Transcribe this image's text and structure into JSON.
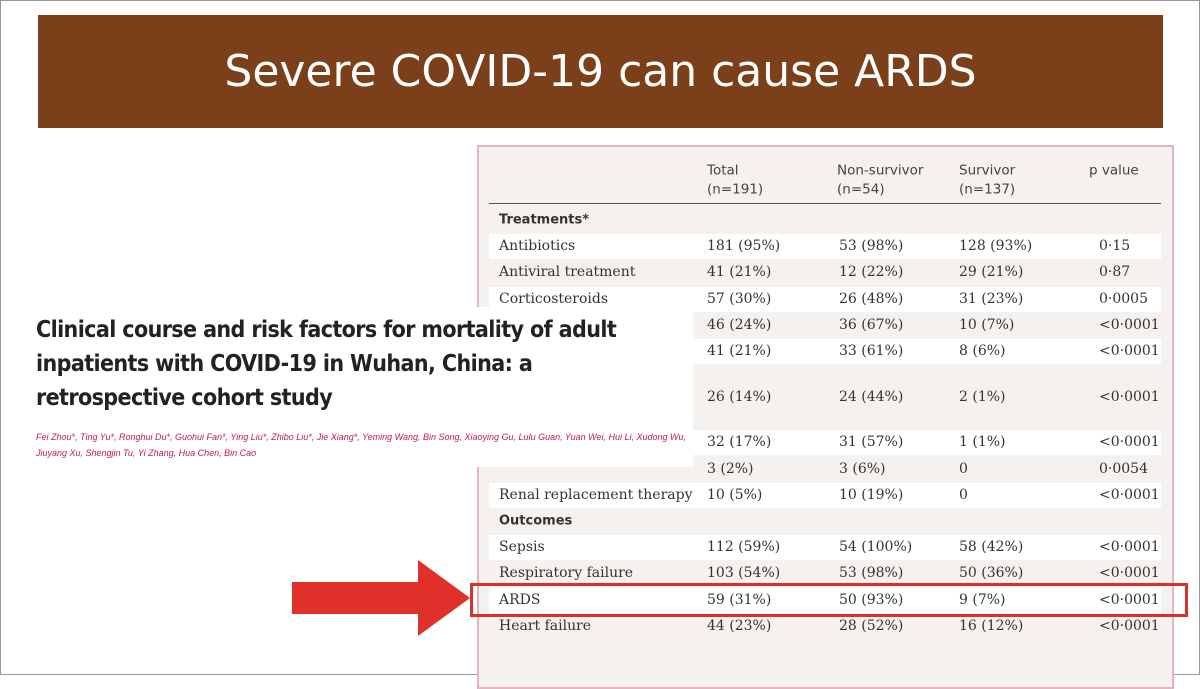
{
  "slide_title": "Severe COVID-19 can cause ARDS",
  "table": {
    "columns": [
      {
        "name": "Total",
        "n": "(n=191)"
      },
      {
        "name": "Non-survivor",
        "n": "(n=54)"
      },
      {
        "name": "Survivor",
        "n": "(n=137)"
      },
      {
        "name": "p value"
      }
    ],
    "sections": [
      {
        "heading": "Treatments*",
        "rows": [
          {
            "label": "Antibiotics",
            "cells": [
              "181 (95%)",
              "53 (98%)",
              "128 (93%)",
              "0·15"
            ]
          },
          {
            "label": "Antiviral treatment",
            "cells": [
              "41 (21%)",
              "12 (22%)",
              "29 (21%)",
              "0·87"
            ]
          },
          {
            "label": "Corticosteroids",
            "cells": [
              "57 (30%)",
              "26 (48%)",
              "31 (23%)",
              "0·0005"
            ]
          },
          {
            "cells": [
              "46 (24%)",
              "36 (67%)",
              "10 (7%)",
              "<0·0001"
            ]
          },
          {
            "cells": [
              "41 (21%)",
              "33 (61%)",
              "8 (6%)",
              "<0·0001"
            ]
          },
          {
            "cells": [
              "26 (14%)",
              "24 (44%)",
              "2 (1%)",
              "<0·0001"
            ]
          },
          {
            "cells": [
              "32 (17%)",
              "31 (57%)",
              "1 (1%)",
              "<0·0001"
            ]
          },
          {
            "cells": [
              "3 (2%)",
              "3 (6%)",
              "0",
              "0·0054"
            ]
          },
          {
            "label": "Renal replacement therapy",
            "cells": [
              "10 (5%)",
              "10 (19%)",
              "0",
              "<0·0001"
            ]
          }
        ]
      },
      {
        "heading": "Outcomes",
        "rows": [
          {
            "label": "Sepsis",
            "cells": [
              "112 (59%)",
              "54 (100%)",
              "58 (42%)",
              "<0·0001"
            ]
          },
          {
            "label": "Respiratory failure",
            "cells": [
              "103 (54%)",
              "53 (98%)",
              "50 (36%)",
              "<0·0001"
            ]
          },
          {
            "label": "ARDS",
            "cells": [
              "59 (31%)",
              "50 (93%)",
              "9 (7%)",
              "<0·0001"
            ]
          },
          {
            "label": "Heart failure",
            "cells": [
              "44 (23%)",
              "28 (52%)",
              "16 (12%)",
              "<0·0001"
            ]
          }
        ]
      }
    ]
  },
  "paper": {
    "title": "Clinical course and risk factors for mortality of adult inpatients with COVID-19 in Wuhan, China: a retrospective cohort study",
    "authors": "Fei Zhou*, Ting Yu*, Ronghui Du*, Guohui Fan*, Ying Liu*, Zhibo Liu*, Jie Xiang*, Yeming Wang, Bin Song, Xiaoying Gu, Lulu Guan, Yuan Wei, Hui Li, Xudong Wu, Jiuyang Xu, Shengjin Tu, Yi Zhang, Hua Chen, Bin Cao"
  }
}
